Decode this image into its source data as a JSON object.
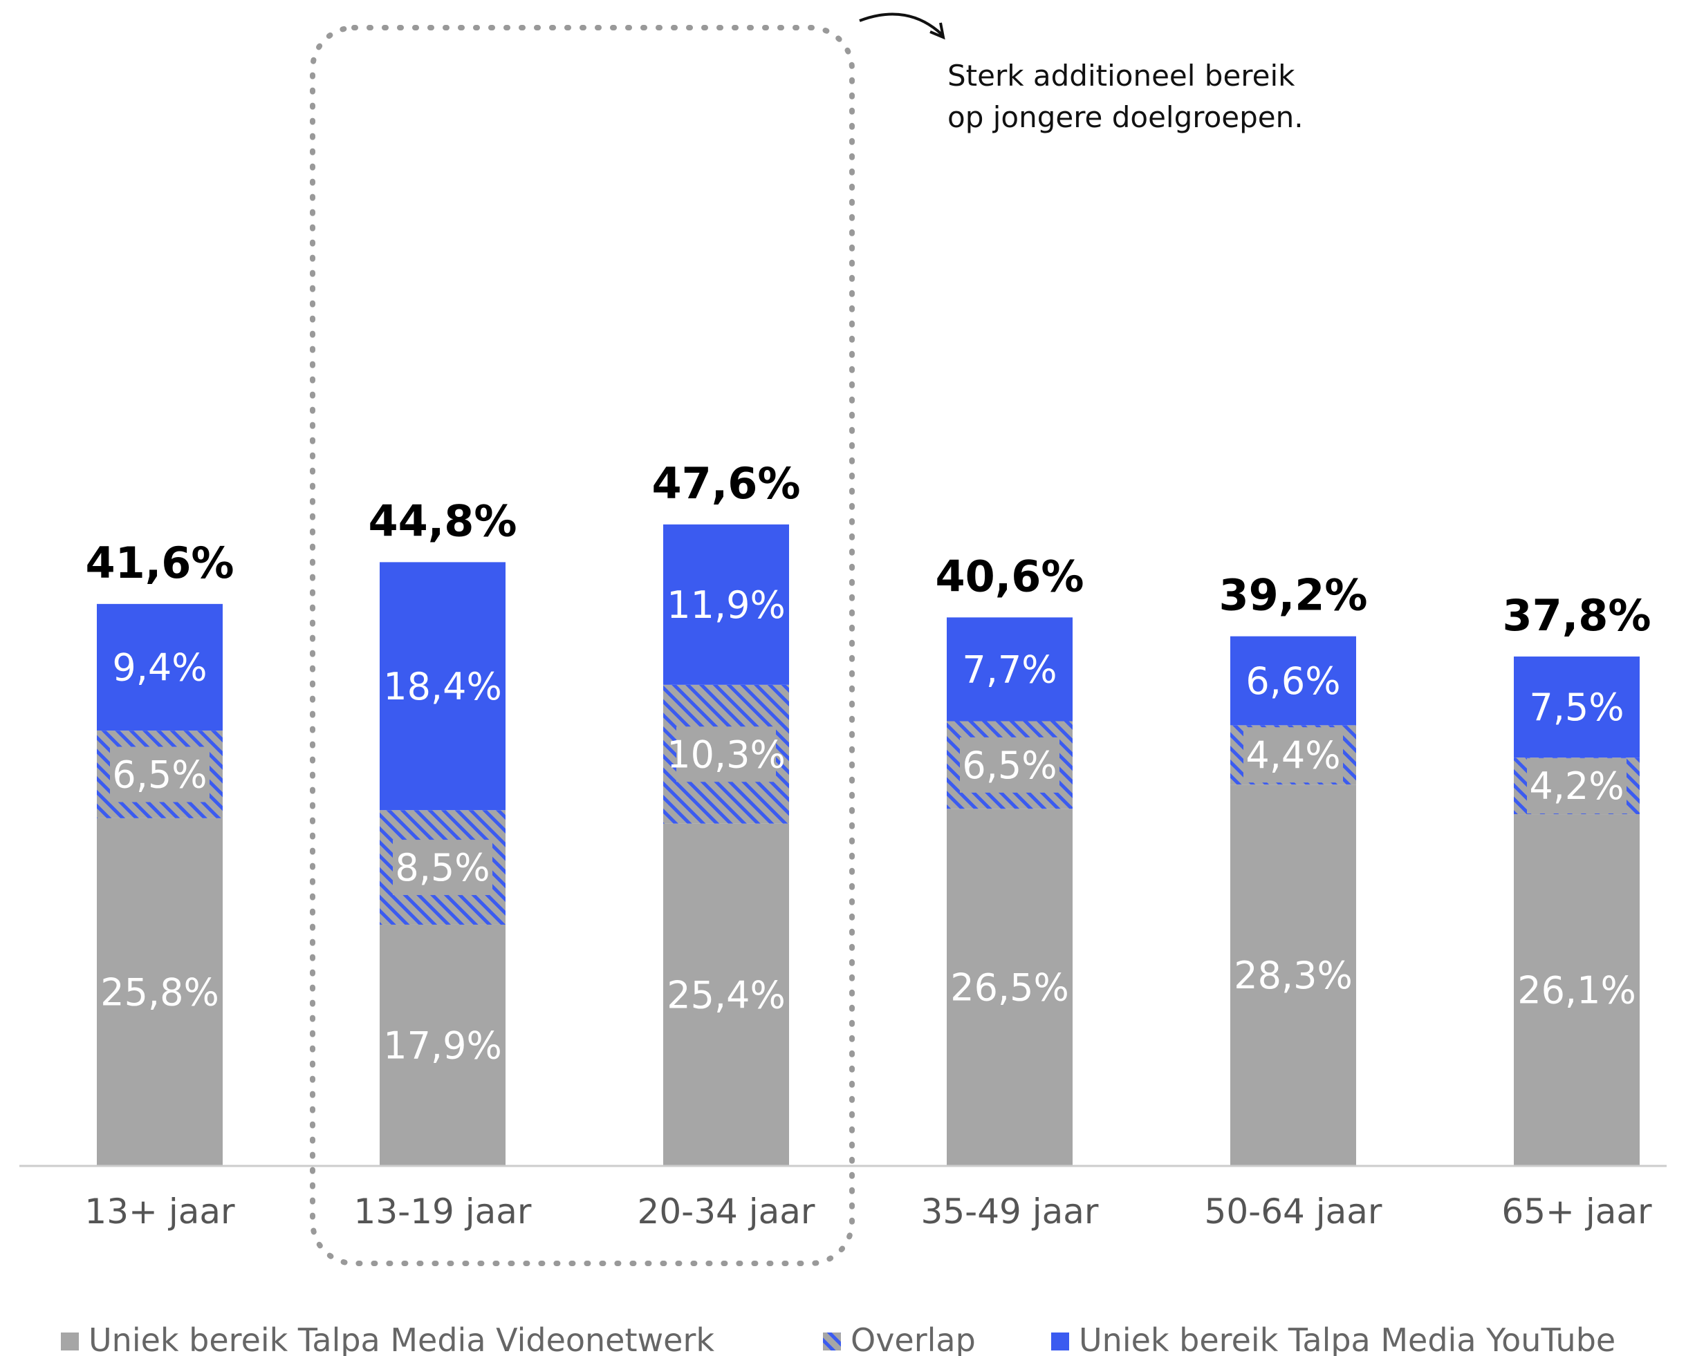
{
  "chart_data": {
    "type": "bar",
    "stacked": true,
    "categories": [
      "13+ jaar",
      "13-19 jaar",
      "20-34 jaar",
      "35-49 jaar",
      "50-64 jaar",
      "65+ jaar"
    ],
    "series": [
      {
        "name": "Uniek bereik Talpa Media Videonetwerk",
        "color": "#a6a6a6",
        "pattern": "solid",
        "values": [
          25.8,
          17.9,
          25.4,
          26.5,
          28.3,
          26.1
        ],
        "labels": [
          "25,8%",
          "17,9%",
          "25,4%",
          "26,5%",
          "28,3%",
          "26,1%"
        ]
      },
      {
        "name": "Overlap",
        "color": "#a6a6a6",
        "pattern": "hatch",
        "hatch_color": "#3b5bf0",
        "values": [
          6.5,
          8.5,
          10.3,
          6.5,
          4.4,
          4.2
        ],
        "labels": [
          "6,5%",
          "8,5%",
          "10,3%",
          "6,5%",
          "4,4%",
          "4,2%"
        ]
      },
      {
        "name": "Uniek bereik Talpa Media YouTube",
        "color": "#3b5bf0",
        "pattern": "solid",
        "values": [
          9.4,
          18.4,
          11.9,
          7.7,
          6.6,
          7.5
        ],
        "labels": [
          "9,4%",
          "18,4%",
          "11,9%",
          "7,7%",
          "6,6%",
          "7,5%"
        ]
      }
    ],
    "totals": [
      41.6,
      44.8,
      47.6,
      40.6,
      39.2,
      37.8
    ],
    "total_labels": [
      "41,6%",
      "44,8%",
      "47,6%",
      "40,6%",
      "39,2%",
      "37,8%"
    ],
    "ylim": [
      0,
      50
    ],
    "grid": false,
    "legend_position": "bottom",
    "highlight_categories": [
      "13-19 jaar",
      "20-34 jaar"
    ],
    "annotation": {
      "lines": [
        "Sterk additioneel bereik",
        "op jongere doelgroepen."
      ]
    }
  }
}
